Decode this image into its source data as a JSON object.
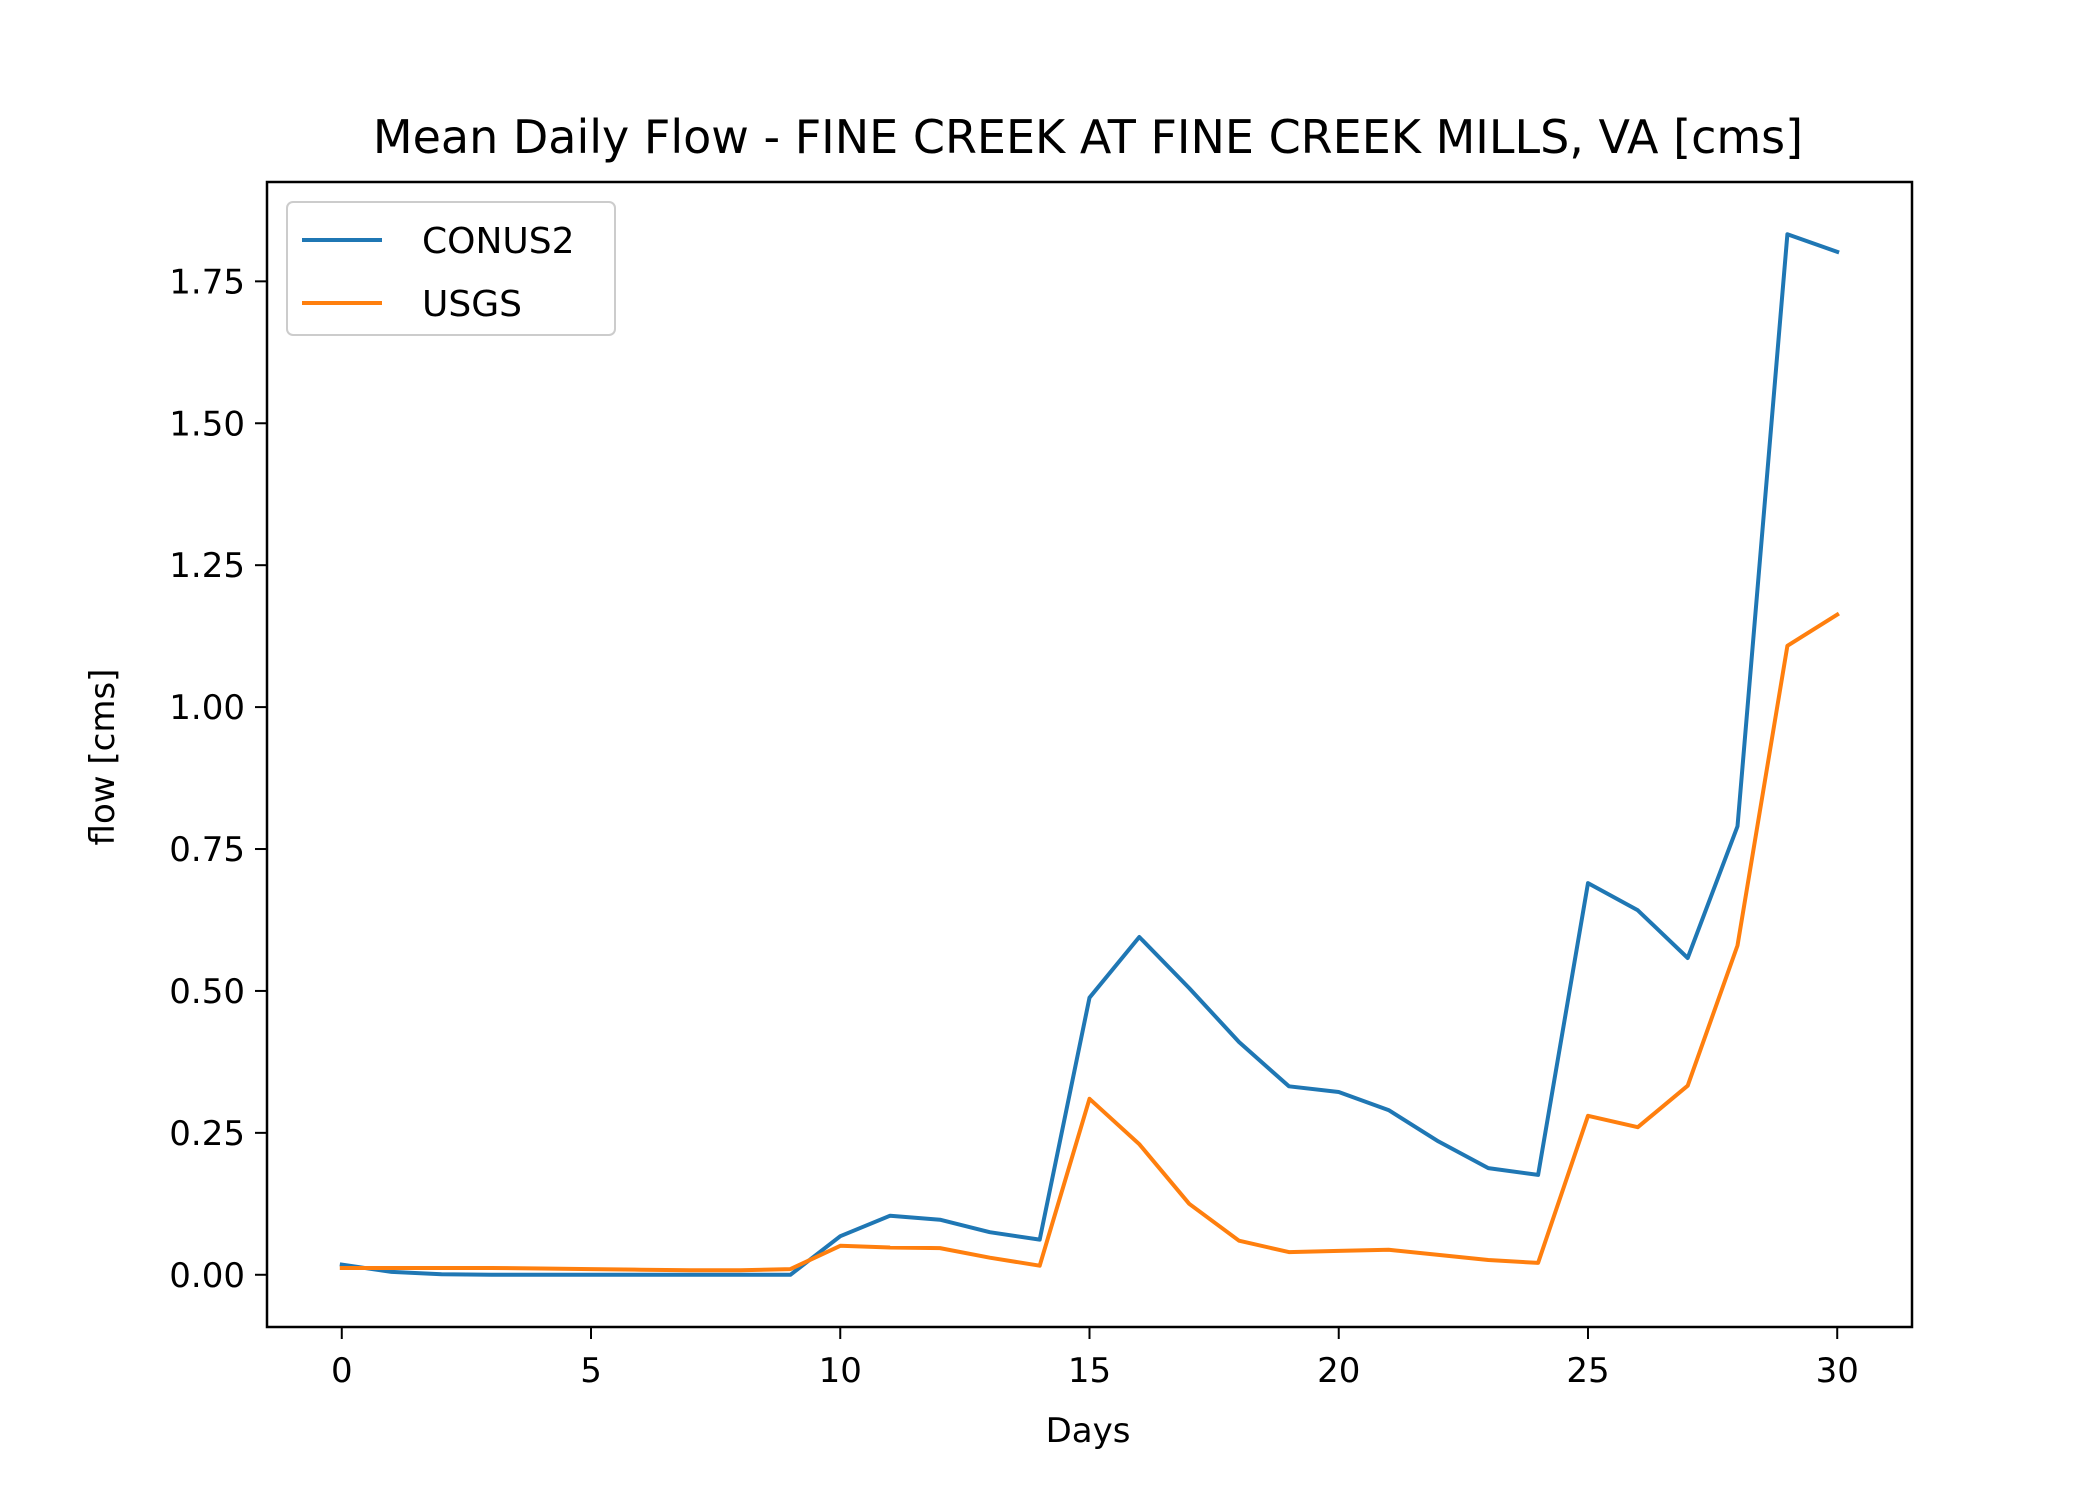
{
  "chart_data": {
    "type": "line",
    "title": "Mean Daily Flow - FINE CREEK AT FINE CREEK MILLS, VA [cms]",
    "xlabel": "Days",
    "ylabel": "flow [cms]",
    "xlim": [
      -1.5,
      31.5
    ],
    "ylim": [
      -0.092,
      1.925
    ],
    "xticks": [
      0,
      5,
      10,
      15,
      20,
      25,
      30
    ],
    "yticks": [
      0.0,
      0.25,
      0.5,
      0.75,
      1.0,
      1.25,
      1.5,
      1.75
    ],
    "xtick_labels": [
      "0",
      "5",
      "10",
      "15",
      "20",
      "25",
      "30"
    ],
    "ytick_labels": [
      "0.00",
      "0.25",
      "0.50",
      "0.75",
      "1.00",
      "1.25",
      "1.50",
      "1.75"
    ],
    "grid": false,
    "legend_position": "upper-left",
    "x": [
      0,
      1,
      2,
      3,
      4,
      5,
      6,
      7,
      8,
      9,
      10,
      11,
      12,
      13,
      14,
      15,
      16,
      17,
      18,
      19,
      20,
      21,
      22,
      23,
      24,
      25,
      26,
      27,
      28,
      29,
      30
    ],
    "series": [
      {
        "name": "CONUS2",
        "color": "#1f77b4",
        "values": [
          0.018,
          0.005,
          0.001,
          0.0,
          0.0,
          0.0,
          0.0,
          0.0,
          0.0,
          0.0,
          0.068,
          0.104,
          0.097,
          0.075,
          0.062,
          0.488,
          0.595,
          0.505,
          0.41,
          0.332,
          0.322,
          0.29,
          0.235,
          0.188,
          0.176,
          0.69,
          0.642,
          0.558,
          0.79,
          1.833,
          1.802
        ]
      },
      {
        "name": "USGS",
        "color": "#ff7f0e",
        "values": [
          0.012,
          0.012,
          0.012,
          0.012,
          0.011,
          0.01,
          0.009,
          0.008,
          0.008,
          0.01,
          0.051,
          0.048,
          0.047,
          0.03,
          0.016,
          0.31,
          0.23,
          0.125,
          0.06,
          0.04,
          0.042,
          0.044,
          0.035,
          0.026,
          0.021,
          0.28,
          0.26,
          0.333,
          0.58,
          1.108,
          1.163
        ]
      }
    ]
  }
}
